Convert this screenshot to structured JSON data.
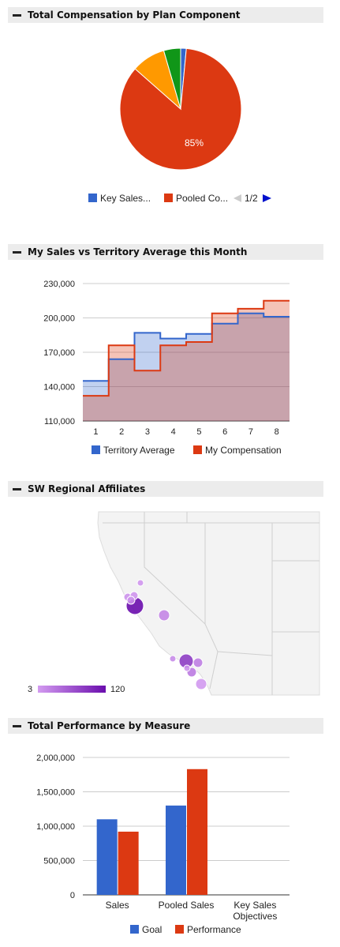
{
  "panels": {
    "p1_title": "Total Compensation by Plan Component",
    "p2_title": "My Sales vs Territory Average this Month",
    "p3_title": "SW Regional Affiliates",
    "p4_title": "Total Performance by Measure"
  },
  "colors": {
    "blue": "#3366cc",
    "red": "#dc3912",
    "orange": "#ff9900",
    "green": "#109618"
  },
  "chart_data": [
    {
      "type": "pie",
      "title": "Total Compensation by Plan Component",
      "slices": [
        {
          "name": "Key Sales...",
          "value": 1.5,
          "color": "#3366cc"
        },
        {
          "name": "Pooled Co...",
          "value": 85,
          "color": "#dc3912",
          "label": "85%"
        },
        {
          "name": "",
          "value": 9,
          "color": "#ff9900"
        },
        {
          "name": "",
          "value": 4.5,
          "color": "#109618"
        }
      ],
      "legend": {
        "items": [
          "Key Sales...",
          "Pooled Co..."
        ],
        "page": "1/2",
        "position": "bottom"
      }
    },
    {
      "type": "area",
      "title": "My Sales vs Territory Average this Month",
      "categories": [
        "1",
        "2",
        "3",
        "4",
        "5",
        "6",
        "7",
        "8"
      ],
      "series": [
        {
          "name": "Territory Average",
          "color": "#3366cc",
          "values": [
            145000,
            164000,
            187000,
            182000,
            186000,
            195000,
            204000,
            201000
          ]
        },
        {
          "name": "My Compensation",
          "color": "#dc3912",
          "values": [
            132000,
            176000,
            154000,
            176000,
            179000,
            204000,
            208000,
            215000
          ]
        }
      ],
      "ylim": [
        110000,
        230000
      ],
      "yticks": [
        "230,000",
        "200,000",
        "170,000",
        "140,000",
        "110,000"
      ],
      "grid": true,
      "legend_position": "bottom"
    },
    {
      "type": "map",
      "title": "SW Regional Affiliates",
      "color_scale": {
        "min_label": "3",
        "max_label": "120",
        "min_color": "#d39bf0",
        "max_color": "#6a0dad"
      },
      "markers": [
        {
          "value": 120
        },
        {
          "value": 10
        },
        {
          "value": 8
        },
        {
          "value": 12
        },
        {
          "value": 6
        },
        {
          "value": 20
        },
        {
          "value": 80
        },
        {
          "value": 15
        },
        {
          "value": 25
        },
        {
          "value": 30
        },
        {
          "value": 10
        },
        {
          "value": 5
        }
      ]
    },
    {
      "type": "bar",
      "title": "Total Performance by Measure",
      "categories": [
        "Sales",
        "Pooled Sales",
        "Key Sales Objectives"
      ],
      "category_lines": [
        [
          "Sales"
        ],
        [
          "Pooled Sales"
        ],
        [
          "Key Sales",
          "Objectives"
        ]
      ],
      "series": [
        {
          "name": "Goal",
          "color": "#3366cc",
          "values": [
            1100000,
            1300000,
            0
          ]
        },
        {
          "name": "Performance",
          "color": "#dc3912",
          "values": [
            920000,
            1830000,
            0
          ]
        }
      ],
      "ylim": [
        0,
        2000000
      ],
      "yticks": [
        "2,000,000",
        "1,500,000",
        "1,000,000",
        "500,000",
        "0"
      ],
      "grid": true,
      "legend_position": "bottom"
    }
  ]
}
